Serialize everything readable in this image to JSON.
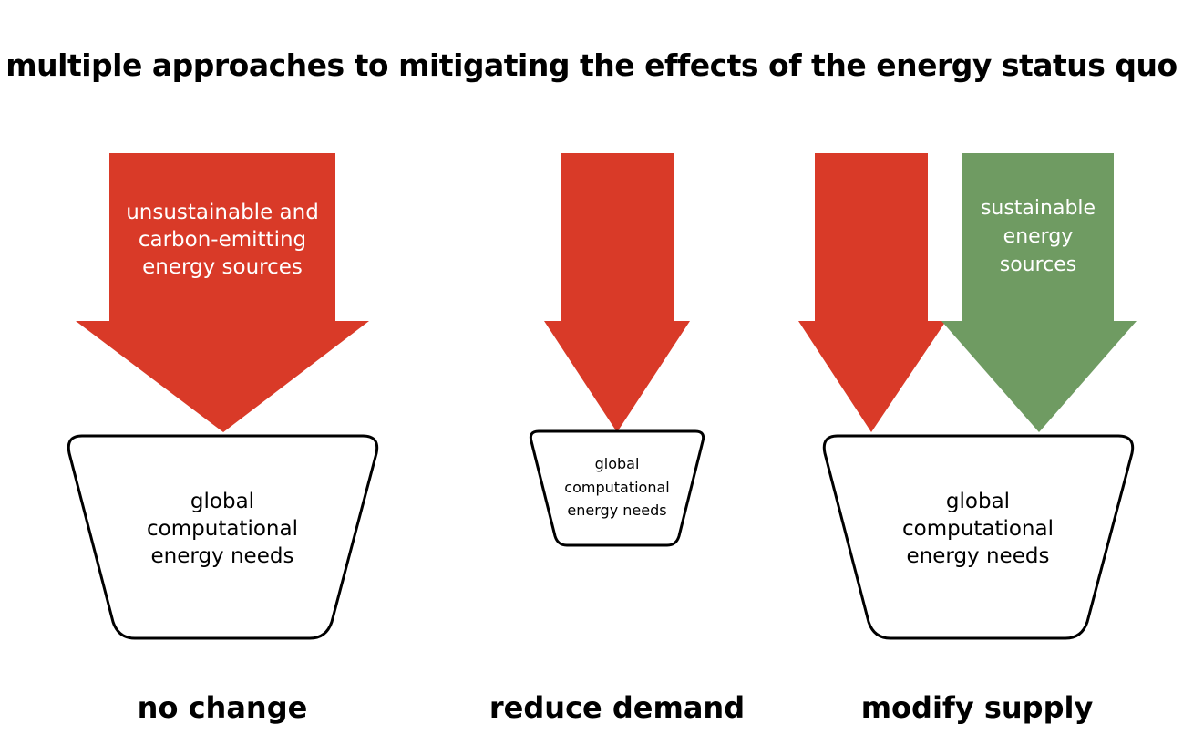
{
  "title": "multiple approaches to mitigating the effects of the energy status quo",
  "colors": {
    "unsustainable": "#d93a28",
    "sustainable": "#6f9b62",
    "bucket_stroke": "#000000",
    "background": "#ffffff"
  },
  "scenarios": [
    {
      "label": "no change",
      "arrows": [
        {
          "kind": "unsustainable",
          "lines": [
            "unsustainable and",
            "carbon-emitting",
            "energy sources"
          ]
        }
      ],
      "bucket": {
        "size": "large",
        "lines": [
          "global",
          "computational",
          "energy needs"
        ]
      }
    },
    {
      "label": "reduce demand",
      "arrows": [
        {
          "kind": "unsustainable",
          "lines": []
        }
      ],
      "bucket": {
        "size": "small",
        "lines": [
          "global",
          "computational",
          "energy needs"
        ]
      }
    },
    {
      "label": "modify supply",
      "arrows": [
        {
          "kind": "unsustainable",
          "lines": []
        },
        {
          "kind": "sustainable",
          "lines": [
            "sustainable",
            "energy",
            "sources"
          ]
        }
      ],
      "bucket": {
        "size": "large",
        "lines": [
          "global",
          "computational",
          "energy needs"
        ]
      }
    }
  ]
}
